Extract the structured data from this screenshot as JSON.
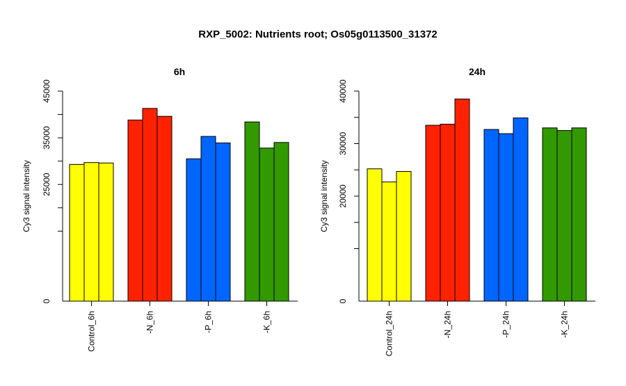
{
  "title": "RXP_5002: Nutrients root; Os05g0113500_31372",
  "chart_data": [
    {
      "type": "bar",
      "title": "6h",
      "ylabel": "Cy3 signal intensity",
      "ylim": [
        0,
        45000
      ],
      "yticks": [
        0,
        25000,
        35000,
        45000
      ],
      "categories": [
        "Control_6h",
        "-N_6h",
        "-P_6h",
        "-K_6h"
      ],
      "colors": [
        "#ffff00",
        "#ff2200",
        "#0066ff",
        "#339900"
      ],
      "values": [
        [
          29300,
          29700,
          29600
        ],
        [
          38800,
          41300,
          39600
        ],
        [
          30500,
          35300,
          33900
        ],
        [
          38400,
          32800,
          34000
        ]
      ]
    },
    {
      "type": "bar",
      "title": "24h",
      "ylabel": "Cy3 signal intensity",
      "ylim": [
        0,
        40000
      ],
      "yticks": [
        0,
        20000,
        30000,
        40000
      ],
      "categories": [
        "Control_24h",
        "-N_24h",
        "-P_24h",
        "-K_24h"
      ],
      "colors": [
        "#ffff00",
        "#ff2200",
        "#0066ff",
        "#339900"
      ],
      "values": [
        [
          25200,
          22700,
          24700
        ],
        [
          33500,
          33700,
          38500
        ],
        [
          32700,
          31900,
          34900
        ],
        [
          33000,
          32500,
          33000
        ]
      ]
    }
  ]
}
